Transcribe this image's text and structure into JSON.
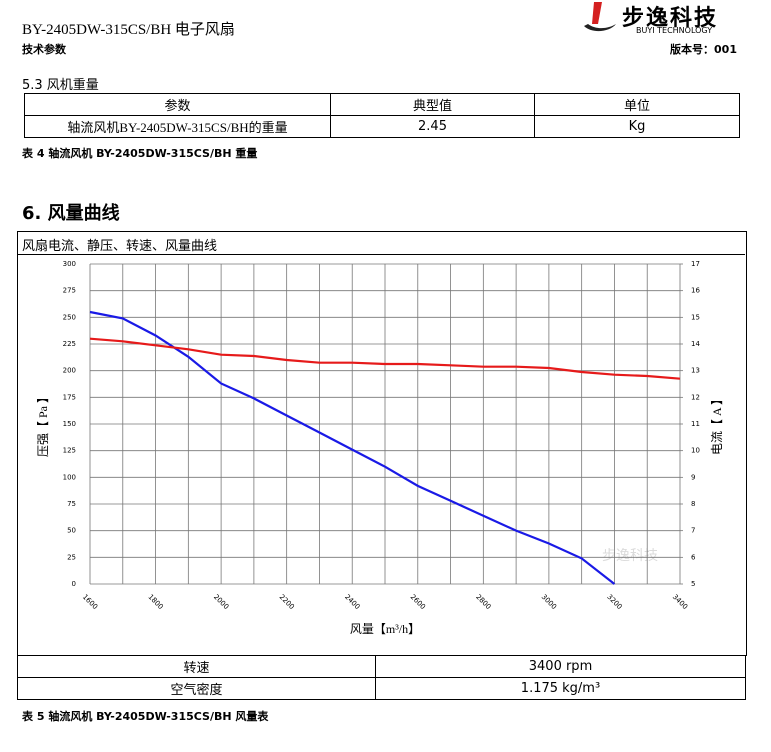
{
  "header": {
    "title": "BY-2405DW-315CS/BH 电子风扇",
    "subtitle": "技术参数",
    "logo_name": "步逸科技",
    "logo_en": "BUYI TECHNOLOGY",
    "version": "版本号：001"
  },
  "section_53": {
    "heading": "5.3 风机重量",
    "table": {
      "header": [
        "参数",
        "典型值",
        "单位"
      ],
      "rows": [
        [
          "轴流风机BY-2405DW-315CS/BH的重量",
          "2.45",
          "Kg"
        ]
      ]
    },
    "caption": "表 4 轴流风机 BY-2405DW-315CS/BH 重量"
  },
  "section_6": {
    "heading": "6.  风量曲线",
    "panel_title": "风扇电流、静压、转速、风量曲线",
    "table": {
      "rows": [
        [
          "转速",
          "3400 rpm"
        ],
        [
          "空气密度",
          "1.175 kg/m³"
        ]
      ]
    },
    "caption": "表 5 轴流风机 BY-2405DW-315CS/BH 风量表"
  },
  "chart_data": {
    "type": "line",
    "watermark": "步逸科技",
    "x_label": "风量【m³/h】",
    "y_label": "压强【 Pa 】",
    "y2_label": "电流【 A 】",
    "x": [
      1600,
      1700,
      1800,
      1900,
      2000,
      2100,
      2200,
      2300,
      2400,
      2500,
      2600,
      2700,
      2800,
      2900,
      3000,
      3100,
      3200,
      3300,
      3400
    ],
    "series": [
      {
        "name": "压强",
        "color": "#1a1ae6",
        "axis": "y",
        "values": [
          255,
          249,
          233,
          213,
          188,
          174,
          158,
          142,
          126,
          110,
          92,
          78,
          64,
          50,
          38,
          24,
          0,
          null,
          null
        ]
      },
      {
        "name": "电流",
        "color": "#e61a1a",
        "axis": "y2",
        "values": [
          14.2,
          14.1,
          13.95,
          13.8,
          13.6,
          13.55,
          13.4,
          13.3,
          13.3,
          13.25,
          13.25,
          13.2,
          13.15,
          13.15,
          13.1,
          12.95,
          12.85,
          12.8,
          12.7
        ]
      }
    ],
    "xlim": [
      1600,
      3400
    ],
    "xticks": [
      1600,
      1800,
      2000,
      2200,
      2400,
      2600,
      2800,
      3000,
      3200,
      3400
    ],
    "xgrid_minor": [
      1700,
      1900,
      2100,
      2300,
      2500,
      2700,
      2900,
      3100,
      3300
    ],
    "ylim": [
      0,
      300
    ],
    "yticks": [
      0,
      25,
      50,
      75,
      100,
      125,
      150,
      175,
      200,
      225,
      250,
      275,
      300
    ],
    "y2lim": [
      5,
      17
    ],
    "y2ticks": [
      5,
      6,
      7,
      8,
      9,
      10,
      11,
      12,
      13,
      14,
      15,
      16,
      17
    ],
    "grid": true
  }
}
